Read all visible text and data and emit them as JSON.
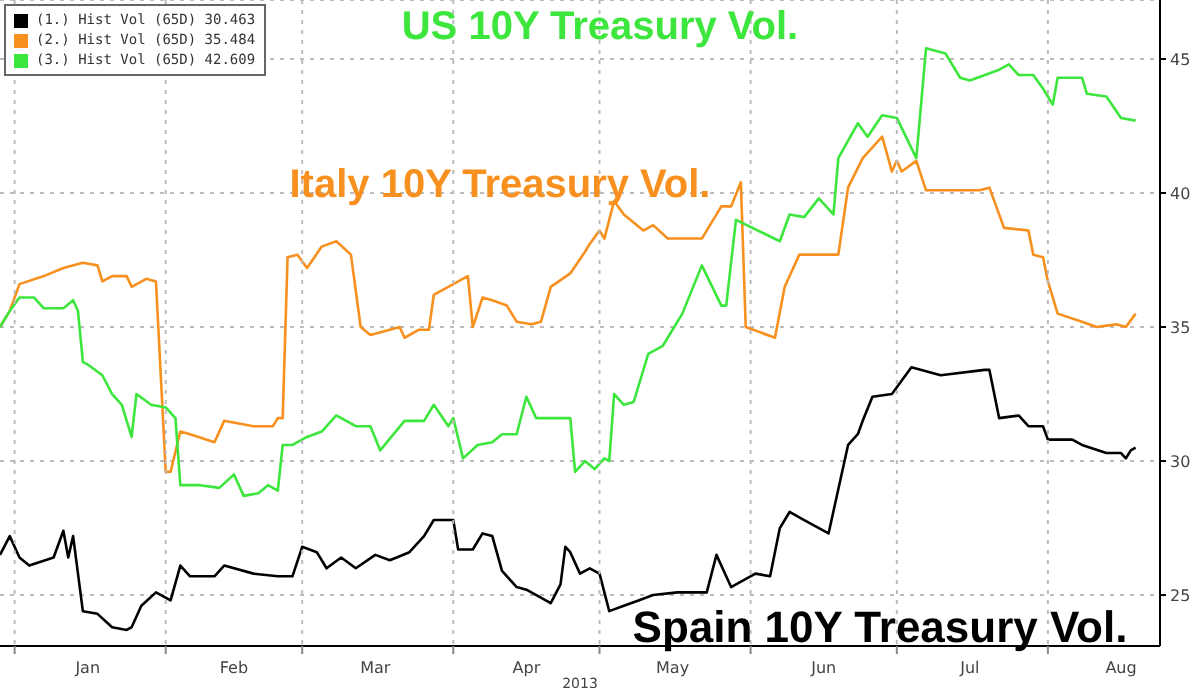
{
  "chart_data": {
    "type": "line",
    "xlabel": "2013",
    "xlim": [
      "2012-12-29",
      "2013-08-24"
    ],
    "xticks": [
      {
        "value": "2013-01-01",
        "label": null
      },
      {
        "value": "2013-02-01",
        "label": null
      },
      {
        "value": "2013-03-01",
        "label": null
      },
      {
        "value": "2013-04-01",
        "label": null
      },
      {
        "value": "2013-05-01",
        "label": null
      },
      {
        "value": "2013-06-01",
        "label": null
      },
      {
        "value": "2013-07-01",
        "label": null
      },
      {
        "value": "2013-08-01",
        "label": null
      },
      {
        "value": "2013-01-16",
        "label": "Jan"
      },
      {
        "value": "2013-02-15",
        "label": "Feb"
      },
      {
        "value": "2013-03-16",
        "label": "Mar"
      },
      {
        "value": "2013-04-16",
        "label": "Apr"
      },
      {
        "value": "2013-05-16",
        "label": "May"
      },
      {
        "value": "2013-06-16",
        "label": "Jun"
      },
      {
        "value": "2013-07-16",
        "label": "Jul"
      },
      {
        "value": "2013-08-16",
        "label": "Aug"
      }
    ],
    "ylim": [
      23.1,
      47.2
    ],
    "yticks": [
      25,
      30,
      35,
      40,
      45
    ],
    "grid": true,
    "legend": "top left",
    "marker": "none",
    "line_style": "solid",
    "series": [
      {
        "name": "(1.) Hist Vol (65D) 30.463",
        "color": "#000000",
        "x": [
          "2012-12-29",
          "2012-12-31",
          "2013-01-02",
          "2013-01-04",
          "2013-01-09",
          "2013-01-11",
          "2013-01-12",
          "2013-01-13",
          "2013-01-15",
          "2013-01-18",
          "2013-01-21",
          "2013-01-24",
          "2013-01-25",
          "2013-01-27",
          "2013-01-30",
          "2013-02-02",
          "2013-02-04",
          "2013-02-06",
          "2013-02-11",
          "2013-02-13",
          "2013-02-19",
          "2013-02-24",
          "2013-02-27",
          "2013-03-01",
          "2013-03-04",
          "2013-03-06",
          "2013-03-09",
          "2013-03-12",
          "2013-03-16",
          "2013-03-19",
          "2013-03-23",
          "2013-03-26",
          "2013-03-28",
          "2013-04-01",
          "2013-04-02",
          "2013-04-05",
          "2013-04-07",
          "2013-04-09",
          "2013-04-11",
          "2013-04-14",
          "2013-04-16",
          "2013-04-21",
          "2013-04-23",
          "2013-04-24",
          "2013-04-25",
          "2013-04-27",
          "2013-04-29",
          "2013-05-01",
          "2013-05-03",
          "2013-05-06",
          "2013-05-09",
          "2013-05-12",
          "2013-05-17",
          "2013-05-23",
          "2013-05-25",
          "2013-05-28",
          "2013-06-02",
          "2013-06-05",
          "2013-06-07",
          "2013-06-09",
          "2013-06-12",
          "2013-06-17",
          "2013-06-21",
          "2013-06-23",
          "2013-06-24",
          "2013-06-26",
          "2013-06-30",
          "2013-07-04",
          "2013-07-10",
          "2013-07-19",
          "2013-07-20",
          "2013-07-22",
          "2013-07-26",
          "2013-07-28",
          "2013-07-31",
          "2013-08-01",
          "2013-08-06",
          "2013-08-08",
          "2013-08-13",
          "2013-08-16",
          "2013-08-17",
          "2013-08-18",
          "2013-08-19"
        ],
        "values": [
          26.5,
          27.2,
          26.4,
          26.1,
          26.4,
          27.4,
          26.4,
          27.2,
          24.4,
          24.3,
          23.8,
          23.7,
          23.8,
          24.6,
          25.1,
          24.8,
          26.1,
          25.7,
          25.7,
          26.1,
          25.8,
          25.7,
          25.7,
          26.8,
          26.6,
          26.0,
          26.4,
          26.0,
          26.5,
          26.3,
          26.6,
          27.2,
          27.8,
          27.8,
          26.7,
          26.7,
          27.3,
          27.2,
          25.9,
          25.3,
          25.2,
          24.7,
          25.4,
          26.8,
          26.6,
          25.8,
          26.0,
          25.8,
          24.4,
          24.6,
          24.8,
          25.0,
          25.1,
          25.1,
          26.5,
          25.3,
          25.8,
          25.7,
          27.5,
          28.1,
          27.8,
          27.3,
          30.6,
          31.0,
          31.5,
          32.4,
          32.5,
          33.5,
          33.2,
          33.4,
          33.4,
          31.6,
          31.7,
          31.3,
          31.3,
          30.8,
          30.8,
          30.6,
          30.3,
          30.3,
          30.1,
          30.4,
          30.5
        ]
      },
      {
        "name": "(2.) Hist Vol (65D) 35.484",
        "color": "#f7901e",
        "x": [
          "2012-12-29",
          "2012-12-31",
          "2013-01-02",
          "2013-01-07",
          "2013-01-11",
          "2013-01-15",
          "2013-01-18",
          "2013-01-19",
          "2013-01-21",
          "2013-01-24",
          "2013-01-25",
          "2013-01-28",
          "2013-01-30",
          "2013-02-01",
          "2013-02-02",
          "2013-02-04",
          "2013-02-06",
          "2013-02-11",
          "2013-02-13",
          "2013-02-19",
          "2013-02-23",
          "2013-02-24",
          "2013-02-25",
          "2013-02-26",
          "2013-02-28",
          "2013-03-02",
          "2013-03-05",
          "2013-03-08",
          "2013-03-11",
          "2013-03-13",
          "2013-03-15",
          "2013-03-19",
          "2013-03-21",
          "2013-03-22",
          "2013-03-25",
          "2013-03-27",
          "2013-03-28",
          "2013-04-01",
          "2013-04-04",
          "2013-04-05",
          "2013-04-07",
          "2013-04-09",
          "2013-04-12",
          "2013-04-14",
          "2013-04-17",
          "2013-04-19",
          "2013-04-21",
          "2013-04-25",
          "2013-04-28",
          "2013-04-29",
          "2013-05-01",
          "2013-05-02",
          "2013-05-04",
          "2013-05-06",
          "2013-05-10",
          "2013-05-12",
          "2013-05-15",
          "2013-05-22",
          "2013-05-26",
          "2013-05-28",
          "2013-05-30",
          "2013-05-31",
          "2013-06-06",
          "2013-06-08",
          "2013-06-11",
          "2013-06-19",
          "2013-06-21",
          "2013-06-24",
          "2013-06-28",
          "2013-06-30",
          "2013-07-01",
          "2013-07-02",
          "2013-07-05",
          "2013-07-07",
          "2013-07-18",
          "2013-07-20",
          "2013-07-23",
          "2013-07-28",
          "2013-07-29",
          "2013-07-31",
          "2013-08-01",
          "2013-08-03",
          "2013-08-08",
          "2013-08-11",
          "2013-08-15",
          "2013-08-17",
          "2013-08-19"
        ],
        "values": [
          35.0,
          35.6,
          36.6,
          36.9,
          37.2,
          37.4,
          37.3,
          36.7,
          36.9,
          36.9,
          36.5,
          36.8,
          36.7,
          29.6,
          29.6,
          31.1,
          31.0,
          30.7,
          31.5,
          31.3,
          31.3,
          31.6,
          31.6,
          37.6,
          37.7,
          37.2,
          38.0,
          38.2,
          37.7,
          35.0,
          34.7,
          34.9,
          35.0,
          34.6,
          34.9,
          34.9,
          36.2,
          36.6,
          36.9,
          35.0,
          36.1,
          36.0,
          35.8,
          35.2,
          35.1,
          35.2,
          36.5,
          37.0,
          37.8,
          38.1,
          38.6,
          38.3,
          39.7,
          39.2,
          38.6,
          38.8,
          38.3,
          38.3,
          39.5,
          39.5,
          40.4,
          35.0,
          34.6,
          36.5,
          37.7,
          37.7,
          40.2,
          41.3,
          42.1,
          40.8,
          41.2,
          40.8,
          41.2,
          40.1,
          40.1,
          40.2,
          38.7,
          38.6,
          37.7,
          37.6,
          36.7,
          35.5,
          35.2,
          35.0,
          35.1,
          35.0,
          35.5
        ]
      },
      {
        "name": "(3.) Hist Vol (65D) 42.609",
        "color": "#3ce63c",
        "x": [
          "2012-12-29",
          "2012-12-31",
          "2013-01-02",
          "2013-01-05",
          "2013-01-07",
          "2013-01-11",
          "2013-01-13",
          "2013-01-14",
          "2013-01-15",
          "2013-01-16",
          "2013-01-19",
          "2013-01-21",
          "2013-01-23",
          "2013-01-25",
          "2013-01-26",
          "2013-01-29",
          "2013-02-01",
          "2013-02-03",
          "2013-02-04",
          "2013-02-08",
          "2013-02-12",
          "2013-02-15",
          "2013-02-17",
          "2013-02-20",
          "2013-02-22",
          "2013-02-24",
          "2013-02-25",
          "2013-02-27",
          "2013-03-02",
          "2013-03-05",
          "2013-03-08",
          "2013-03-12",
          "2013-03-15",
          "2013-03-17",
          "2013-03-22",
          "2013-03-26",
          "2013-03-28",
          "2013-03-31",
          "2013-04-01",
          "2013-04-03",
          "2013-04-06",
          "2013-04-09",
          "2013-04-11",
          "2013-04-14",
          "2013-04-16",
          "2013-04-18",
          "2013-04-21",
          "2013-04-25",
          "2013-04-26",
          "2013-04-28",
          "2013-04-30",
          "2013-05-02",
          "2013-05-03",
          "2013-05-04",
          "2013-05-06",
          "2013-05-08",
          "2013-05-11",
          "2013-05-14",
          "2013-05-18",
          "2013-05-22",
          "2013-05-26",
          "2013-05-27",
          "2013-05-29",
          "2013-06-07",
          "2013-06-09",
          "2013-06-12",
          "2013-06-15",
          "2013-06-18",
          "2013-06-19",
          "2013-06-23",
          "2013-06-25",
          "2013-06-28",
          "2013-07-01",
          "2013-07-05",
          "2013-07-07",
          "2013-07-11",
          "2013-07-14",
          "2013-07-16",
          "2013-07-22",
          "2013-07-24",
          "2013-07-26",
          "2013-07-29",
          "2013-07-31",
          "2013-08-02",
          "2013-08-03",
          "2013-08-08",
          "2013-08-09",
          "2013-08-13",
          "2013-08-16",
          "2013-08-19"
        ],
        "values": [
          35.0,
          35.6,
          36.1,
          36.1,
          35.7,
          35.7,
          36.0,
          35.6,
          33.7,
          33.6,
          33.2,
          32.5,
          32.1,
          30.9,
          32.5,
          32.1,
          32.0,
          31.6,
          29.1,
          29.1,
          29.0,
          29.5,
          28.7,
          28.8,
          29.1,
          28.9,
          30.6,
          30.6,
          30.9,
          31.1,
          31.7,
          31.3,
          31.3,
          30.4,
          31.5,
          31.5,
          32.1,
          31.3,
          31.6,
          30.1,
          30.6,
          30.7,
          31.0,
          31.0,
          32.4,
          31.6,
          31.6,
          31.6,
          29.6,
          30.0,
          29.7,
          30.1,
          30.0,
          32.5,
          32.1,
          32.2,
          34.0,
          34.3,
          35.5,
          37.3,
          35.8,
          35.8,
          39.0,
          38.2,
          39.2,
          39.1,
          39.8,
          39.2,
          41.3,
          42.6,
          42.1,
          42.9,
          42.8,
          41.3,
          45.4,
          45.2,
          44.3,
          44.2,
          44.6,
          44.8,
          44.4,
          44.4,
          43.9,
          43.3,
          44.3,
          44.3,
          43.7,
          43.6,
          42.8,
          42.7
        ]
      }
    ],
    "annotations": [
      "Spain 10Y Treasury Vol.",
      "Italy 10Y Treasury Vol.",
      "US 10Y Treasury Vol."
    ]
  }
}
